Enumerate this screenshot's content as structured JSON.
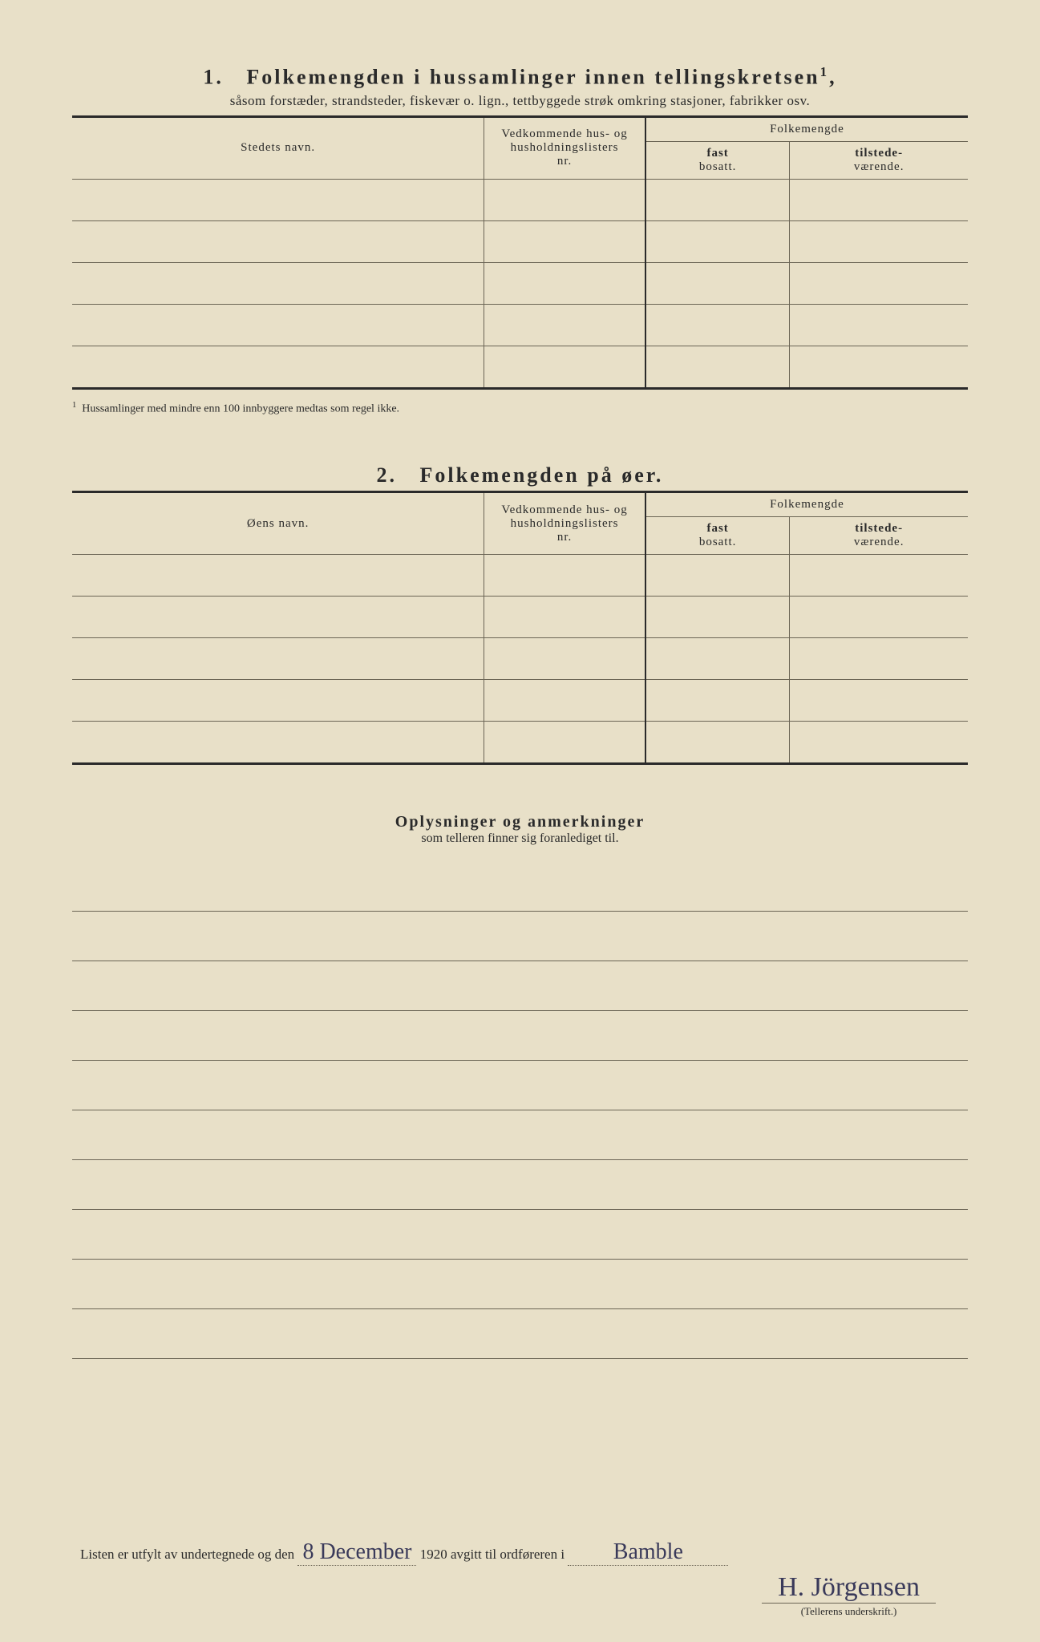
{
  "colors": {
    "paper": "#e8e0c8",
    "ink": "#2a2a2a",
    "rule": "#6b6555",
    "handwriting": "#3a3a5a"
  },
  "section1": {
    "number": "1.",
    "title": "Folkemengden i hussamlinger innen tellingskretsen",
    "title_sup": "1",
    "subtitle": "såsom forstæder, strandsteder, fiskevær o. lign., tettbyggede strøk omkring stasjoner, fabrikker osv.",
    "col_name": "Stedets navn.",
    "col_hus_l1": "Vedkommende hus- og",
    "col_hus_l2": "husholdningslisters",
    "col_hus_l3": "nr.",
    "col_folk": "Folkemengde",
    "col_fast_l1": "fast",
    "col_fast_l2": "bosatt.",
    "col_til_l1": "tilstede-",
    "col_til_l2": "værende.",
    "row_count": 5,
    "footnote_marker": "1",
    "footnote": "Hussamlinger med mindre enn 100 innbyggere medtas som regel ikke."
  },
  "section2": {
    "number": "2.",
    "title": "Folkemengden på øer.",
    "col_name": "Øens navn.",
    "col_hus_l1": "Vedkommende hus- og",
    "col_hus_l2": "husholdningslisters",
    "col_hus_l3": "nr.",
    "col_folk": "Folkemengde",
    "col_fast_l1": "fast",
    "col_fast_l2": "bosatt.",
    "col_til_l1": "tilstede-",
    "col_til_l2": "værende.",
    "row_count": 5
  },
  "section3": {
    "title": "Oplysninger og anmerkninger",
    "subtitle": "som telleren finner sig foranlediget til.",
    "line_count": 10
  },
  "footer": {
    "prefix": "Listen er utfylt av undertegnede og den",
    "date_hand": "8 December",
    "year": "1920",
    "middle": "avgitt til ordføreren i",
    "place_hand": "Bamble",
    "signature": "H. Jörgensen",
    "sig_caption": "(Tellerens underskrift.)"
  }
}
